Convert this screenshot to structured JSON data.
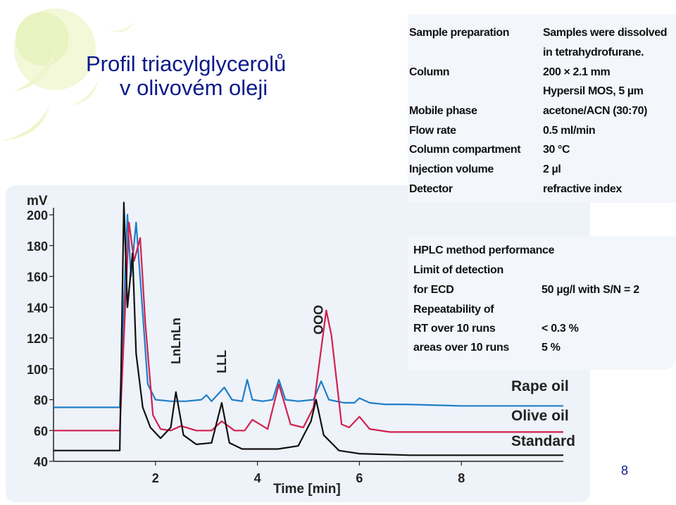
{
  "slide": {
    "title_line1": "Profil triacylglycerolů",
    "title_line2": "v olivovém oleji",
    "page_number": "8"
  },
  "method_table": [
    {
      "label": "Sample preparation",
      "value": "Samples were dissolved"
    },
    {
      "label": "",
      "value": "in tetrahydrofurane."
    },
    {
      "label": "Column",
      "value": "200 × 2.1 mm"
    },
    {
      "label": "",
      "value": "Hypersil MOS, 5 µm"
    },
    {
      "label": "Mobile phase",
      "value": "acetone/ACN (30:70)"
    },
    {
      "label": "Flow rate",
      "value": "0.5 ml/min"
    },
    {
      "label": "Column compartment",
      "value": "30 °C"
    },
    {
      "label": "Injection volume",
      "value": "2 µl"
    },
    {
      "label": "Detector",
      "value": "refractive index"
    }
  ],
  "performance": {
    "heading": "HPLC method performance",
    "rows": [
      {
        "label": "Limit of detection",
        "value": ""
      },
      {
        "label": "for ECD",
        "value": "50 µg/l with S/N = 2"
      },
      {
        "label": "Repeatability of",
        "value": ""
      },
      {
        "label": "RT over 10 runs",
        "value": "< 0.3 %"
      },
      {
        "label": "areas over 10 runs",
        "value": "5 %"
      }
    ]
  },
  "colors": {
    "rape": "#1e7fc8",
    "olive": "#d2204f",
    "standard": "#111111",
    "title": "#0a1a8c",
    "panel_bg": "#f3f6fb",
    "deco": "#e8f2b8"
  },
  "chart_data": {
    "type": "line",
    "ylabel": "mV",
    "xlabel": "Time [min]",
    "ylim": [
      40,
      200
    ],
    "xlim": [
      0,
      10
    ],
    "yticks": [
      200,
      180,
      160,
      140,
      120,
      100,
      80,
      60,
      40
    ],
    "xticks": [
      2,
      4,
      6,
      8
    ],
    "peak_labels": [
      {
        "text": "LnLnLn",
        "x": 2.4
      },
      {
        "text": "LLL",
        "x": 3.3
      },
      {
        "text": "OOO",
        "x": 5.2
      }
    ],
    "series": [
      {
        "name": "Rape oil",
        "color_key": "rape",
        "x": [
          0.0,
          1.3,
          1.45,
          1.52,
          1.62,
          1.72,
          1.85,
          2.0,
          2.3,
          2.6,
          2.9,
          3.0,
          3.1,
          3.35,
          3.5,
          3.7,
          3.8,
          3.9,
          4.1,
          4.3,
          4.42,
          4.55,
          4.8,
          5.1,
          5.25,
          5.4,
          5.7,
          5.9,
          6.0,
          6.2,
          6.5,
          6.9,
          8.0,
          10.0
        ],
        "y": [
          75,
          75,
          200,
          160,
          195,
          150,
          90,
          80,
          79,
          79,
          80,
          83,
          79,
          88,
          80,
          79,
          93,
          80,
          79,
          80,
          93,
          80,
          79,
          80,
          92,
          80,
          78,
          78,
          81,
          78,
          77,
          77,
          76,
          76
        ]
      },
      {
        "name": "Olive oil",
        "color_key": "olive",
        "x": [
          0.0,
          1.3,
          1.48,
          1.58,
          1.7,
          1.8,
          1.95,
          2.1,
          2.3,
          2.5,
          2.8,
          3.1,
          3.3,
          3.55,
          3.75,
          3.9,
          4.2,
          4.42,
          4.65,
          4.9,
          5.1,
          5.35,
          5.45,
          5.65,
          5.8,
          6.0,
          6.2,
          6.6,
          8.0,
          10.0
        ],
        "y": [
          60,
          60,
          195,
          170,
          185,
          130,
          70,
          61,
          60,
          63,
          60,
          60,
          66,
          60,
          60,
          67,
          61,
          90,
          64,
          62,
          75,
          138,
          122,
          64,
          62,
          69,
          61,
          59,
          59,
          59
        ]
      },
      {
        "name": "Standard",
        "color_key": "standard",
        "x": [
          0.0,
          1.3,
          1.38,
          1.45,
          1.55,
          1.62,
          1.75,
          1.9,
          2.1,
          2.3,
          2.4,
          2.55,
          2.8,
          3.1,
          3.3,
          3.45,
          3.7,
          4.0,
          4.4,
          4.8,
          5.05,
          5.15,
          5.3,
          5.6,
          6.0,
          7.0,
          10.0
        ],
        "y": [
          47,
          47,
          208,
          140,
          175,
          110,
          75,
          62,
          55,
          62,
          85,
          57,
          51,
          52,
          78,
          52,
          48,
          48,
          48,
          50,
          66,
          80,
          57,
          47,
          45,
          44,
          44
        ]
      }
    ]
  }
}
